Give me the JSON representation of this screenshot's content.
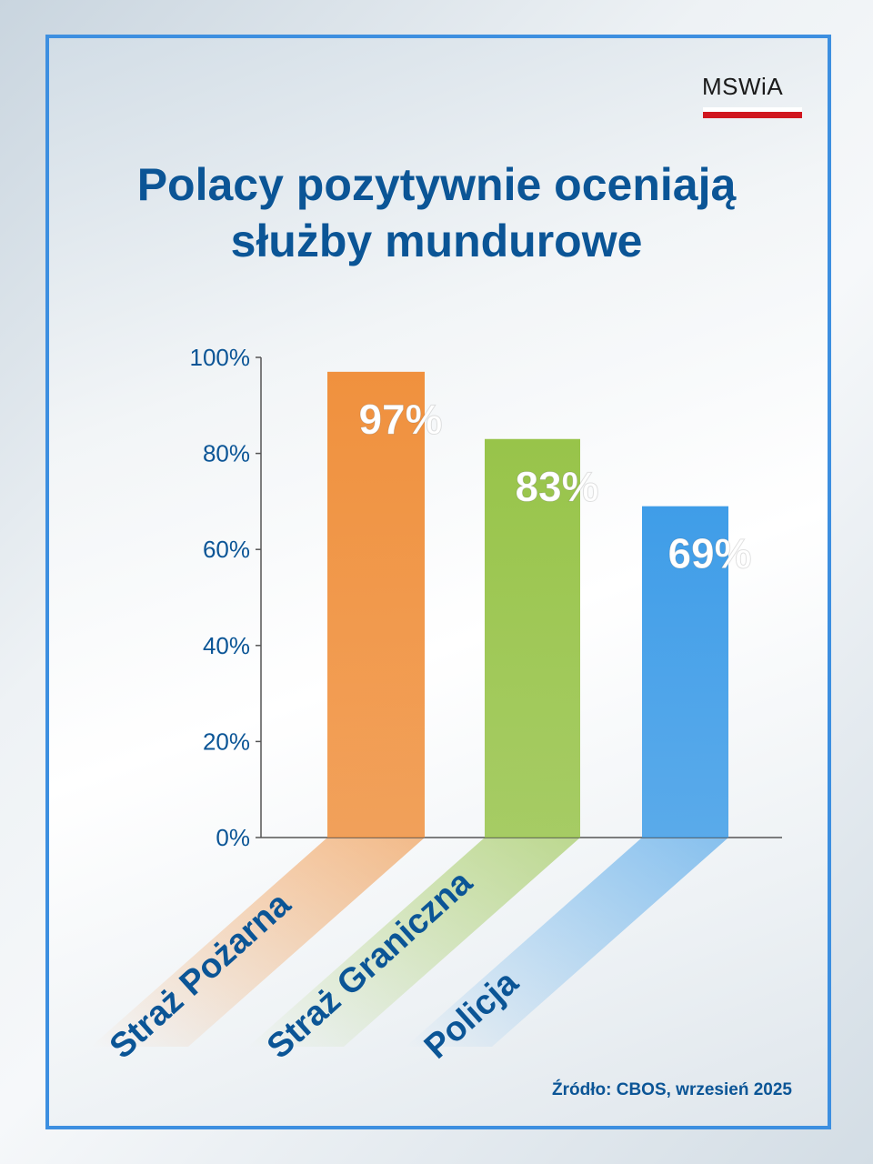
{
  "logo": {
    "text": "MSWiA"
  },
  "chart_data": {
    "type": "bar",
    "title": "Polacy pozytywnie oceniają służby mundurowe",
    "title_lines": [
      "Polacy pozytywnie oceniają",
      "służby mundurowe"
    ],
    "categories": [
      "Straż Pożarna",
      "Straż Graniczna",
      "Policja"
    ],
    "values": [
      97,
      83,
      69
    ],
    "data_labels": [
      "97%",
      "83%",
      "69%"
    ],
    "colors": [
      "#f0913e",
      "#98c44a",
      "#3f9de8"
    ],
    "ylim": [
      0,
      100
    ],
    "yticks": [
      0,
      20,
      40,
      60,
      80,
      100
    ],
    "ytick_labels": [
      "0%",
      "20%",
      "40%",
      "60%",
      "80%",
      "100%"
    ],
    "xlabel": "",
    "ylabel": "",
    "grid": false
  },
  "source": "Źródło: CBOS, wrzesień 2025"
}
